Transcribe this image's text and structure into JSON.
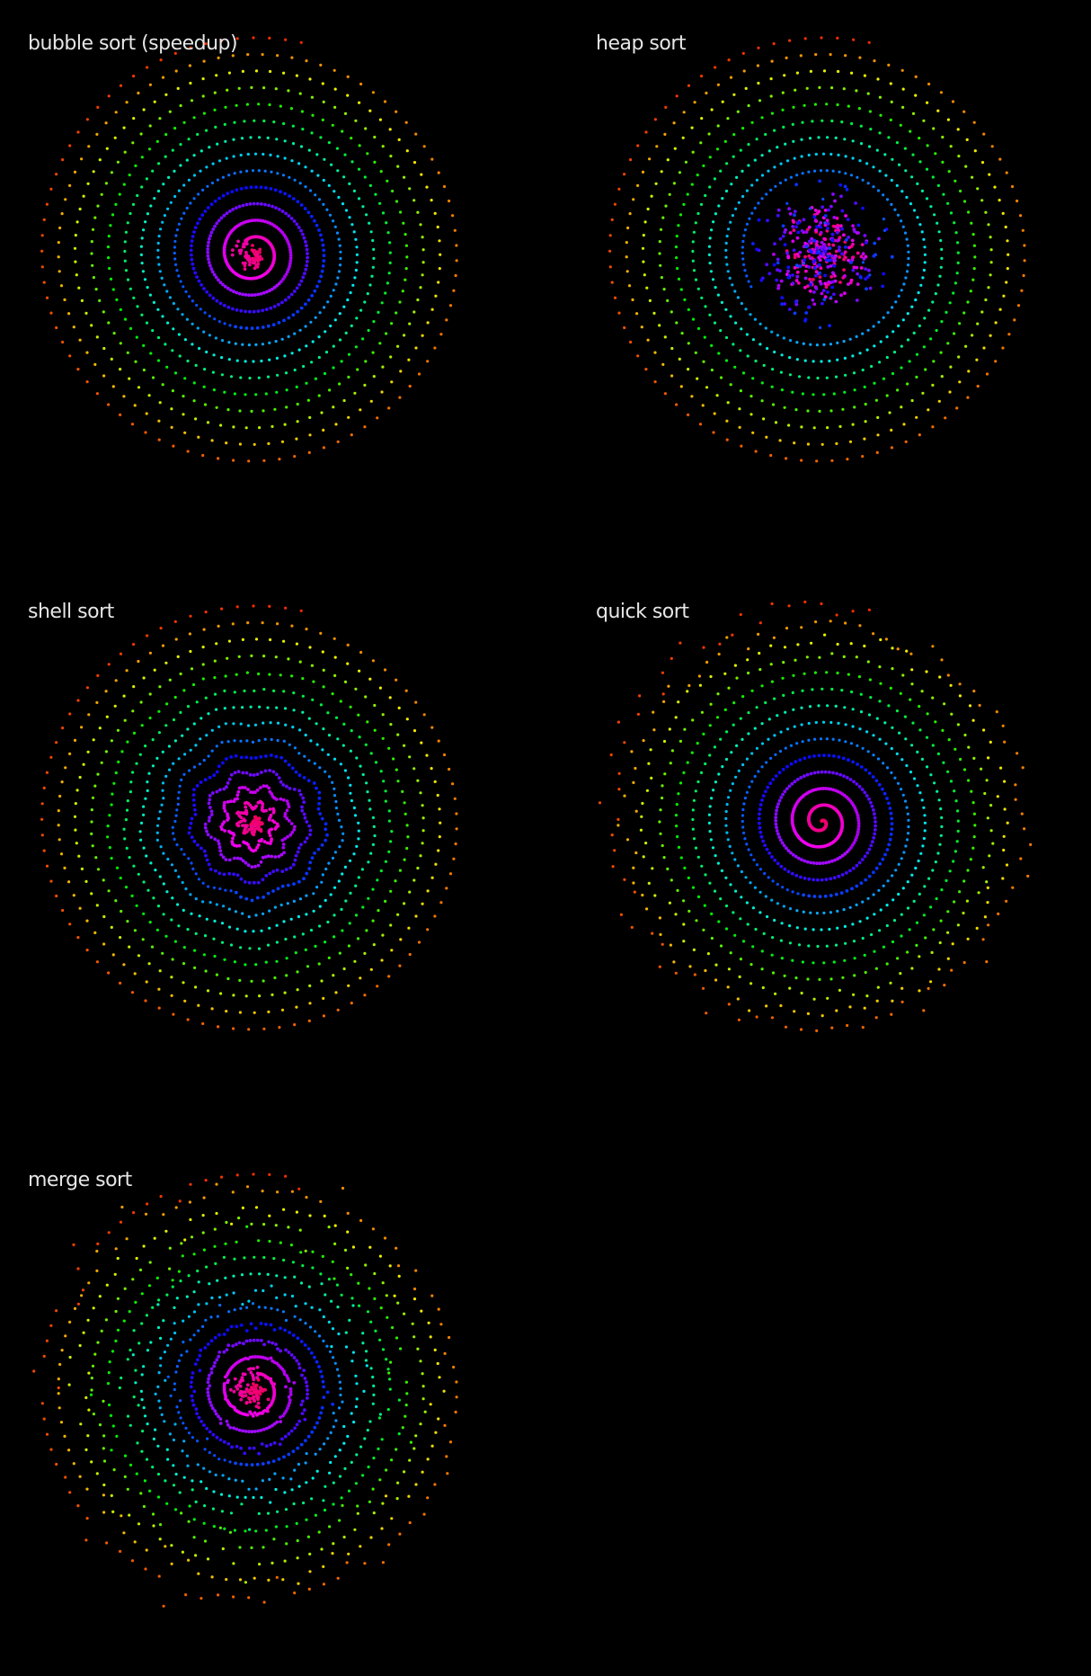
{
  "background": "#000000",
  "panels": [
    {
      "title": "bubble sort (speedup)",
      "disorder": "center"
    },
    {
      "title": "heap sort",
      "disorder": "inner-disc"
    },
    {
      "title": "shell sort",
      "disorder": "wiggle"
    },
    {
      "title": "quick sort",
      "disorder": "outer"
    },
    {
      "title": "merge sort",
      "disorder": "mixed"
    }
  ],
  "color_scale": [
    "#ff1a5a",
    "#d600e0",
    "#7a00ff",
    "#1a2cff",
    "#00c8d8",
    "#10d020",
    "#e0d000",
    "#ff3a00"
  ]
}
